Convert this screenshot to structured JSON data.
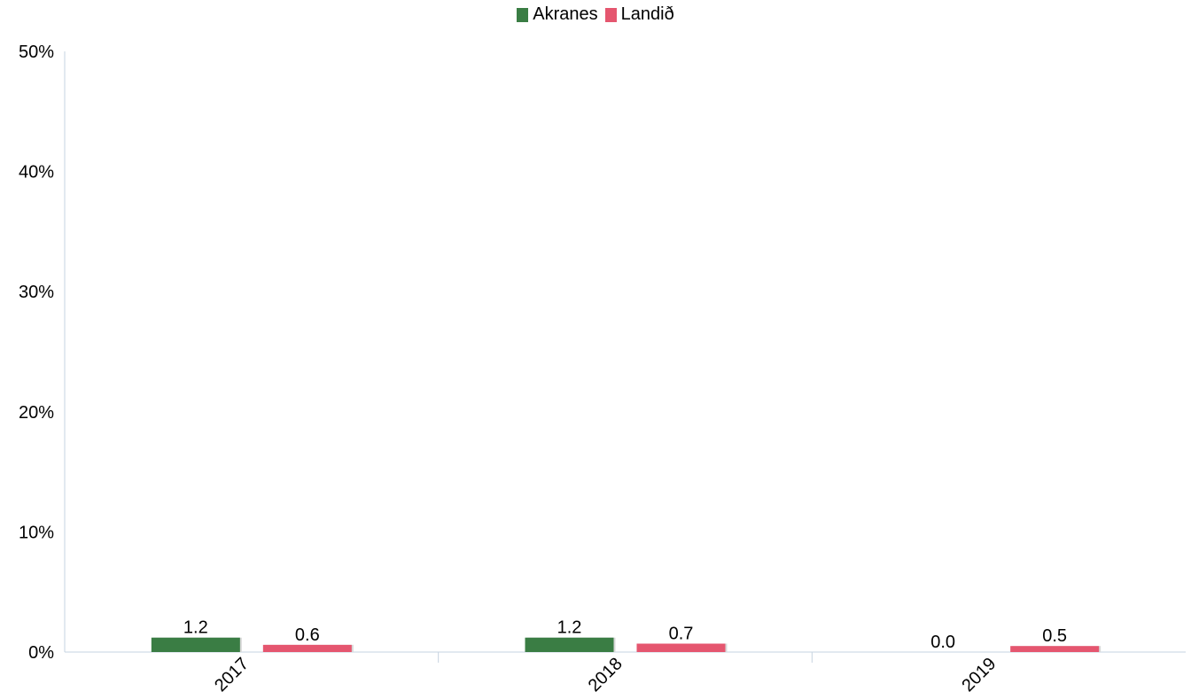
{
  "chart_data": {
    "type": "bar",
    "categories": [
      "2017",
      "2018",
      "2019"
    ],
    "series": [
      {
        "name": "Akranes",
        "color": "#3a7d44",
        "values": [
          1.2,
          1.2,
          0.0
        ],
        "labels": [
          "1.2",
          "1.2",
          "0.0"
        ]
      },
      {
        "name": "Landið",
        "color": "#e5566f",
        "values": [
          0.6,
          0.7,
          0.5
        ],
        "labels": [
          "0.6",
          "0.7",
          "0.5"
        ]
      }
    ],
    "yticks": [
      "0%",
      "10%",
      "20%",
      "30%",
      "40%",
      "50%"
    ],
    "ylim": [
      0,
      50
    ],
    "xlabel": "",
    "ylabel": "",
    "legend_position": "top-center",
    "grid": false
  }
}
